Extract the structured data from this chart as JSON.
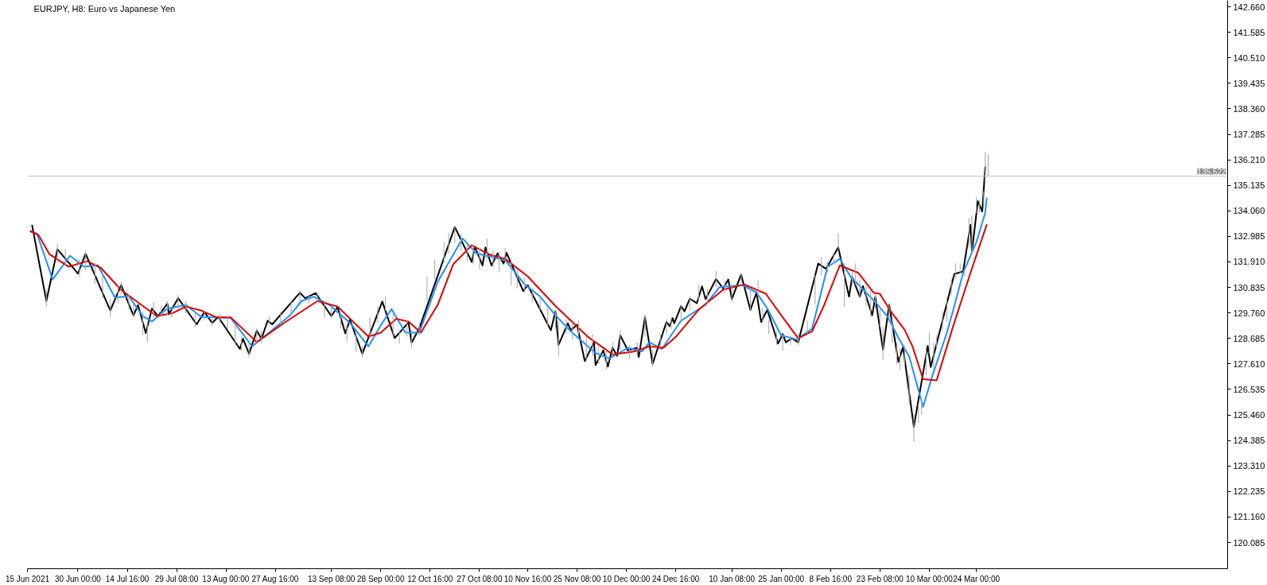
{
  "chart_data": {
    "type": "line",
    "title": "EURJPY, H8: Euro vs Japanese Yen",
    "grid": false,
    "xlim": [
      "2021-06-15",
      "2022-06-06T16:00"
    ],
    "xticks": [
      {
        "value": "2021-06-15",
        "label": "15 Jun 2021"
      },
      {
        "value": "2021-06-30T00:00",
        "label": "30 Jun 00:00"
      },
      {
        "value": "2021-07-14T16:00",
        "label": "14 Jul 16:00"
      },
      {
        "value": "2021-07-29T08:00",
        "label": "29 Jul 08:00"
      },
      {
        "value": "2021-08-13T00:00",
        "label": "13 Aug 00:00"
      },
      {
        "value": "2021-08-27T16:00",
        "label": "27 Aug 16:00"
      },
      {
        "value": "2021-09-13T08:00",
        "label": "13 Sep 08:00"
      },
      {
        "value": "2021-09-28T00:00",
        "label": "28 Sep 00:00"
      },
      {
        "value": "2021-10-12T16:00",
        "label": "12 Oct 16:00"
      },
      {
        "value": "2021-10-27T08:00",
        "label": "27 Oct 08:00"
      },
      {
        "value": "2021-11-10T16:00",
        "label": "10 Nov 16:00"
      },
      {
        "value": "2021-11-25T08:00",
        "label": "25 Nov 08:00"
      },
      {
        "value": "2021-12-10T00:00",
        "label": "10 Dec 00:00"
      },
      {
        "value": "2021-12-24T16:00",
        "label": "24 Dec 16:00"
      },
      {
        "value": "2022-01-10T08:00",
        "label": "10 Jan 08:00"
      },
      {
        "value": "2022-01-25T00:00",
        "label": "25 Jan 00:00"
      },
      {
        "value": "2022-02-08T16:00",
        "label": "8 Feb 16:00"
      },
      {
        "value": "2022-02-23T08:00",
        "label": "23 Feb 08:00"
      },
      {
        "value": "2022-03-10T00:00",
        "label": "10 Mar 00:00"
      },
      {
        "value": "2022-03-24T00:00",
        "label": "24 Mar 00:00"
      }
    ],
    "ylim": [
      118.98,
      142.93
    ],
    "yticks": [
      {
        "value": 120.085,
        "label": "120.085"
      },
      {
        "value": 121.16,
        "label": "121.160"
      },
      {
        "value": 122.235,
        "label": "122.235"
      },
      {
        "value": 123.31,
        "label": "123.310"
      },
      {
        "value": 124.385,
        "label": "124.385"
      },
      {
        "value": 125.46,
        "label": "125.460"
      },
      {
        "value": 126.535,
        "label": "126.535"
      },
      {
        "value": 127.61,
        "label": "127.610"
      },
      {
        "value": 128.685,
        "label": "128.685"
      },
      {
        "value": 129.76,
        "label": "129.760"
      },
      {
        "value": 130.835,
        "label": "130.835"
      },
      {
        "value": 131.91,
        "label": "131.910"
      },
      {
        "value": 132.985,
        "label": "132.985"
      },
      {
        "value": 134.06,
        "label": "134.060"
      },
      {
        "value": 135.135,
        "label": "135.135"
      },
      {
        "value": 136.21,
        "label": "136.210"
      },
      {
        "value": 137.285,
        "label": "137.285"
      },
      {
        "value": 138.36,
        "label": "138.360"
      },
      {
        "value": 139.435,
        "label": "139.435"
      },
      {
        "value": 140.51,
        "label": "140.510"
      },
      {
        "value": 141.585,
        "label": "141.585"
      },
      {
        "value": 142.66,
        "label": "142.660"
      }
    ],
    "ref_lines": [
      {
        "axis": "y",
        "value": 135.522,
        "label": "135.522",
        "color": "#c0c0c0"
      }
    ],
    "series": [
      {
        "color": "#000000",
        "x": [
          "2021-06-16T09:45",
          "2021-06-20T15:00",
          "2021-06-23T21:45",
          "2021-06-30T00:00",
          "2021-07-02T07:00",
          "2021-07-09T15:00",
          "2021-07-12T20:00",
          "2021-07-16T12:00",
          "2021-07-17T21:00",
          "2021-07-20T04:00",
          "2021-07-22T00:00",
          "2021-07-23T20:00",
          "2021-07-26T14:00",
          "2021-07-27T01:00",
          "2021-07-29T19:00",
          "2021-08-04T07:00",
          "2021-08-06T14:00",
          "2021-08-08T21:00",
          "2021-08-10T17:00",
          "2021-08-17T03:00",
          "2021-08-18T01:00",
          "2021-08-19T21:00",
          "2021-08-22T04:00",
          "2021-08-23T13:00",
          "2021-08-25T09:00",
          "2021-08-26T18:00",
          "2021-09-03T23:00",
          "2021-09-05T12:30",
          "2021-09-08T15:30",
          "2021-09-13T08:00",
          "2021-09-15T04:00",
          "2021-09-17T11:00",
          "2021-09-18T20:00",
          "2021-09-22T12:00",
          "2021-09-28T11:00",
          "2021-10-02T03:00",
          "2021-10-06T06:00",
          "2021-10-07T04:00",
          "2021-10-09T11:00",
          "2021-10-20T00:00",
          "2021-10-25T01:00",
          "2021-10-25T23:00",
          "2021-10-28T05:30",
          "2021-10-29T03:00",
          "2021-10-30T22:00",
          "2021-11-01T17:00",
          "2021-11-03T12:00",
          "2021-11-04T09:30",
          "2021-11-09T07:45",
          "2021-11-10T16:00",
          "2021-11-17T13:00",
          "2021-11-18T22:00",
          "2021-11-19T20:00",
          "2021-11-22T14:00",
          "2021-11-23T12:00",
          "2021-11-25T08:00",
          "2021-11-27T15:00",
          "2021-11-30T09:00",
          "2021-11-30T20:00",
          "2021-12-03T03:00",
          "2021-12-04T12:00",
          "2021-12-05T21:00",
          "2021-12-07T06:00",
          "2021-12-08T04:00",
          "2021-12-10T11:00",
          "2021-12-13T05:00",
          "2021-12-13T16:00",
          "2021-12-15T12:00",
          "2021-12-17T19:00",
          "2021-12-21T22:00",
          "2021-12-22T20:00",
          "2021-12-23T18:00",
          "2021-12-24T05:00",
          "2021-12-26T05:30",
          "2021-12-27T06:30",
          "2021-12-28T20:00",
          "2021-12-30T22:00",
          "2022-01-01T11:30",
          "2022-01-02T12:30",
          "2022-01-05T15:30",
          "2022-01-07T17:30",
          "2022-01-09T07:00",
          "2022-01-10T08:00",
          "2022-01-13T02:00",
          "2022-01-15T20:00",
          "2022-01-17T16:00",
          "2022-01-19T01:00",
          "2022-01-20T21:00",
          "2022-01-24T02:00",
          "2022-01-25T11:00",
          "2022-01-26T09:00",
          "2022-01-28T05:00",
          "2022-01-30T01:00",
          "2022-02-05T00:00",
          "2022-02-07T07:00",
          "2022-02-10T23:00",
          "2022-02-14T04:00",
          "2022-02-15T02:00",
          "2022-02-17T09:00",
          "2022-02-18T07:00",
          "2022-02-21T01:00",
          "2022-02-21T23:00",
          "2022-02-24T06:00",
          "2022-02-26T02:00",
          "2022-02-28T20:00",
          "2022-03-02T05:00",
          "2022-03-05T10:00",
          "2022-03-09T13:00",
          "2022-03-10T10:30",
          "2022-03-17T10:30",
          "2022-03-20T01:30",
          "2022-03-22T06:00",
          "2022-03-22T16:30",
          "2022-03-24T10:30",
          "2022-03-25T18:00",
          "2022-03-26T15:00"
        ],
        "values": [
          133.44,
          130.26,
          132.44,
          131.42,
          132.25,
          129.86,
          130.93,
          129.65,
          130.09,
          128.91,
          129.94,
          129.63,
          130.15,
          129.71,
          130.38,
          129.28,
          129.8,
          129.34,
          129.59,
          128.24,
          128.67,
          128.04,
          129.01,
          128.67,
          129.43,
          129.28,
          130.61,
          130.38,
          130.59,
          129.63,
          130.01,
          128.9,
          129.48,
          128.04,
          130.24,
          128.7,
          129.36,
          128.51,
          129.11,
          133.38,
          131.91,
          132.55,
          131.76,
          132.52,
          131.76,
          132.27,
          131.84,
          132.29,
          130.68,
          130.93,
          129.03,
          129.83,
          128.41,
          129.32,
          129.03,
          129.26,
          127.73,
          128.52,
          127.56,
          128.18,
          127.5,
          128.29,
          127.95,
          128.81,
          128.18,
          128.29,
          127.9,
          129.57,
          127.62,
          129.38,
          129.2,
          129.54,
          129.32,
          130.05,
          129.83,
          130.36,
          130.17,
          130.88,
          130.34,
          131.19,
          130.79,
          131.17,
          130.34,
          131.38,
          129.89,
          130.62,
          129.38,
          129.89,
          128.47,
          128.87,
          128.52,
          128.69,
          128.52,
          131.84,
          131.62,
          132.52,
          130.44,
          131.28,
          130.44,
          130.89,
          129.66,
          130.44,
          128.21,
          130.11,
          127.7,
          128.32,
          124.96,
          128.37,
          127.48,
          131.4,
          131.51,
          133.47,
          132.35,
          134.47,
          134.03,
          135.9
        ]
      },
      {
        "color": "#1e90ff",
        "x": [
          "2021-06-15T22:30",
          "2021-06-17T19:30",
          "2021-06-22T12:00",
          "2021-06-27T15:45",
          "2021-07-01T20:00",
          "2021-07-05T23:00",
          "2021-07-11T00:00",
          "2021-07-15T03:00",
          "2021-07-19T06:00",
          "2021-07-22T00:00",
          "2021-07-26T14:00",
          "2021-08-01T02:00",
          "2021-08-05T16:00",
          "2021-08-14T09:00",
          "2021-08-20T19:00",
          "2021-08-26T07:00",
          "2021-08-31T20:00",
          "2021-09-04T11:30",
          "2021-09-08T03:00",
          "2021-09-12T19:30",
          "2021-09-18T20:00",
          "2021-09-24T08:00",
          "2021-09-28T11:00",
          "2021-10-01T05:00",
          "2021-10-05T08:00",
          "2021-10-09T11:00",
          "2021-10-14T23:00",
          "2021-10-22T07:00",
          "2021-10-26T10:00",
          "2021-10-29T13:45",
          "2021-11-03T22:45",
          "2021-11-09T18:30",
          "2021-11-14T08:00",
          "2021-11-18T22:00",
          "2021-11-23T12:00",
          "2021-11-30T20:00",
          "2021-12-04T23:00",
          "2021-12-10T11:00",
          "2021-12-14T14:00",
          "2021-12-16T21:00",
          "2021-12-20T13:00",
          "2021-12-26T05:30",
          "2022-01-02T12:30",
          "2022-01-06T16:30",
          "2022-01-13T13:00",
          "2022-01-17T16:00",
          "2022-01-20T21:00",
          "2022-01-25T00:00",
          "2022-01-29T14:00",
          "2022-02-03T04:00",
          "2022-02-07T18:00",
          "2022-02-11T10:00",
          "2022-02-14T15:00",
          "2022-02-17T09:00",
          "2022-02-21T23:00",
          "2022-02-25T15:00",
          "2022-02-28T20:00",
          "2022-03-04T01:00",
          "2022-03-08T04:00",
          "2022-03-10T21:00",
          "2022-03-15T06:00",
          "2022-03-17T10:30",
          "2022-03-20T01:30",
          "2022-03-24T00:00",
          "2022-03-26T15:00",
          "2022-03-27T01:30"
        ],
        "values": [
          133.18,
          133.1,
          131.17,
          132.17,
          131.71,
          131.77,
          130.4,
          130.47,
          129.63,
          129.4,
          129.94,
          130.09,
          129.59,
          129.55,
          128.35,
          128.99,
          129.63,
          130.26,
          130.44,
          130.09,
          129.34,
          128.35,
          129.34,
          129.92,
          128.93,
          128.93,
          131.08,
          132.9,
          132.27,
          132.16,
          131.99,
          130.96,
          130.45,
          129.66,
          128.98,
          128.07,
          127.84,
          128.29,
          128.13,
          128.52,
          128.24,
          129.43,
          130.11,
          130.85,
          130.93,
          130.62,
          129.94,
          128.81,
          128.64,
          129.09,
          131.7,
          132.04,
          131.28,
          130.89,
          130.22,
          129.6,
          128.71,
          127.92,
          125.8,
          127.09,
          128.93,
          130.05,
          131.45,
          132.74,
          133.97,
          134.59
        ]
      },
      {
        "color": "#e00000",
        "x": [
          "2021-06-15T22:30",
          "2021-06-18T06:45",
          "2021-06-21T13:30",
          "2021-06-27T04:30",
          "2021-07-02T18:00",
          "2021-07-06T21:00",
          "2021-07-12T20:00",
          "2021-07-18T08:00",
          "2021-07-23T09:00",
          "2021-07-27T23:00",
          "2021-08-01T02:00",
          "2021-08-05T16:00",
          "2021-08-10T06:00",
          "2021-08-14T09:00",
          "2021-08-22T04:00",
          "2021-08-30T06:30",
          "2021-09-09T04:00",
          "2021-09-15T04:00",
          "2021-09-24T08:00",
          "2021-09-28T00:00",
          "2021-10-02T14:00",
          "2021-10-06T06:00",
          "2021-10-09T22:00",
          "2021-10-14T23:00",
          "2021-10-19T13:00",
          "2021-10-25T01:00",
          "2021-10-30T11:15",
          "2021-11-03T22:45",
          "2021-11-10T16:00",
          "2021-11-18T22:00",
          "2021-11-28T13:00",
          "2021-12-05T21:00",
          "2021-12-12T07:00",
          "2021-12-16T21:00",
          "2021-12-21T00:00",
          "2021-12-24T16:00",
          "2021-12-31T10:30",
          "2022-01-07T17:30",
          "2022-01-14T00:00",
          "2022-01-20T10:00",
          "2022-01-25T00:00",
          "2022-01-30T01:00",
          "2022-02-03T04:00",
          "2022-02-06T20:00",
          "2022-02-11T10:00",
          "2022-02-16T22:00",
          "2022-02-21T12:00",
          "2022-02-23T08:00",
          "2022-02-26T13:00",
          "2022-03-02T16:00",
          "2022-03-04T23:00",
          "2022-03-08T04:00",
          "2022-03-12T04:30",
          "2022-03-17T00:00",
          "2022-03-22T06:00",
          "2022-03-27T01:30"
        ],
        "values": [
          133.21,
          133.04,
          132.23,
          131.71,
          131.94,
          131.65,
          130.73,
          130.15,
          129.63,
          129.74,
          130.03,
          129.86,
          129.57,
          129.57,
          128.53,
          129.34,
          130.26,
          130.03,
          128.76,
          128.93,
          129.51,
          129.4,
          128.93,
          130.11,
          131.81,
          132.61,
          132.21,
          132.04,
          131.3,
          130.05,
          128.75,
          128.01,
          128.13,
          128.35,
          128.29,
          128.75,
          129.89,
          130.74,
          130.96,
          130.57,
          129.66,
          128.69,
          128.98,
          130.11,
          131.76,
          131.45,
          130.61,
          130.56,
          129.83,
          129.05,
          128.37,
          126.97,
          126.92,
          129.16,
          131.45,
          133.47
        ]
      },
      {
        "type": "bar",
        "color": "#a9a9a9",
        "x": [
          "2021-06-20T15:00",
          "2021-06-23T21:45",
          "2021-06-26T06:00",
          "2021-06-30T11:00",
          "2021-07-02T07:00",
          "2021-07-05T01:00",
          "2021-07-07T08:00",
          "2021-07-09T15:00",
          "2021-07-11T22:00",
          "2021-07-12T20:00",
          "2021-07-15T03:00",
          "2021-07-16T12:00",
          "2021-07-19T06:00",
          "2021-07-20T15:00",
          "2021-07-22T11:00",
          "2021-07-24T18:00",
          "2021-07-26T14:00",
          "2021-07-27T23:00",
          "2021-07-29T19:00",
          "2021-08-01T02:00",
          "2021-08-03T20:00",
          "2021-08-06T14:00",
          "2021-08-08T21:00",
          "2021-08-11T04:00",
          "2021-08-13T11:00",
          "2021-08-15T18:00",
          "2021-08-17T14:00",
          "2021-08-19T21:00",
          "2021-08-22T04:00",
          "2021-08-23T13:00",
          "2021-08-25T20:00",
          "2021-08-29T05:30",
          "2021-09-01T08:30",
          "2021-09-03T23:00",
          "2021-09-06T13:30",
          "2021-09-09T04:00",
          "2021-09-11T06:00",
          "2021-09-13T08:00",
          "2021-09-16T02:00",
          "2021-09-17T22:00",
          "2021-09-20T16:00",
          "2021-09-22T12:00",
          "2021-09-24T19:00",
          "2021-09-27T02:00",
          "2021-09-29T09:00",
          "2021-10-01T16:00",
          "2021-10-03T12:00",
          "2021-10-05T19:00",
          "2021-10-07T04:00",
          "2021-10-09T11:00",
          "2021-10-11T18:00",
          "2021-10-14T01:00",
          "2021-10-16T19:00",
          "2021-10-18T04:00",
          "2021-10-20T00:00",
          "2021-10-21T20:00",
          "2021-10-23T16:00",
          "2021-10-25T12:00",
          "2021-10-27T08:00",
          "2021-10-29T13:45",
          "2021-10-31T08:45",
          "2021-11-02T03:45",
          "2021-11-03T22:45",
          "2021-11-05T17:45",
          "2021-11-07T12:45",
          "2021-11-09T18:30",
          "2021-11-12T01:00",
          "2021-11-14T08:00",
          "2021-11-16T15:00",
          "2021-11-18T22:00",
          "2021-11-19T20:00",
          "2021-11-22T03:00",
          "2021-11-23T23:00",
          "2021-11-25T19:00",
          "2021-11-28T02:00",
          "2021-11-29T22:00",
          "2021-12-01T18:00",
          "2021-12-04T01:00",
          "2021-12-05T21:00",
          "2021-12-08T04:00",
          "2021-12-10T22:00",
          "2021-12-13T05:00",
          "2021-12-15T12:00",
          "2021-12-17T19:00",
          "2021-12-20T02:00",
          "2021-12-21T22:00",
          "2021-12-23T07:00",
          "2021-12-26T05:30",
          "2021-12-28T20:00",
          "2021-12-31T10:30",
          "2022-01-03T01:00",
          "2022-01-05T15:30",
          "2022-01-08T06:00",
          "2022-01-10T08:00",
          "2022-01-13T02:00",
          "2022-01-15T20:00",
          "2022-01-18T03:00",
          "2022-01-19T12:00",
          "2022-01-21T08:00",
          "2022-01-23T15:00",
          "2022-01-25T11:00",
          "2022-01-27T18:00",
          "2022-01-30T01:00",
          "2022-02-01T19:00",
          "2022-02-04T02:00",
          "2022-02-05T22:00",
          "2022-02-07T18:00",
          "2022-02-09T14:00",
          "2022-02-10T23:00",
          "2022-02-12T19:00",
          "2022-02-15T02:00",
          "2022-02-16T00:00",
          "2022-02-17T09:00",
          "2022-02-19T05:00",
          "2022-02-20T14:00",
          "2022-02-21T23:00",
          "2022-02-23T08:00",
          "2022-02-24T06:00",
          "2022-02-26T02:00",
          "2022-02-27T00:00",
          "2022-02-28T09:00",
          "2022-03-01T07:00",
          "2022-03-02T16:00",
          "2022-03-04T01:00",
          "2022-03-05T10:00",
          "2022-03-06T19:00",
          "2022-03-07T17:00",
          "2022-03-09T02:00",
          "2022-03-10T00:00",
          "2022-03-11T07:30",
          "2022-03-12T04:30",
          "2022-03-13T22:30",
          "2022-03-15T06:00",
          "2022-03-16T13:30",
          "2022-03-17T21:00",
          "2022-03-19T04:30",
          "2022-03-20T12:00",
          "2022-03-21T19:30",
          "2022-03-22T16:30",
          "2022-03-24T00:00",
          "2022-03-24T21:00",
          "2022-03-26T04:30",
          "2022-03-26T15:00",
          "2022-03-27T12:00"
        ],
        "base": [
          130.01,
          131.88,
          131.71,
          131.25,
          131.59,
          130.96,
          130.38,
          129.57,
          130.15,
          130.51,
          129.92,
          129.57,
          128.82,
          128.53,
          129.57,
          129.57,
          129.68,
          129.57,
          129.92,
          129.74,
          129.16,
          129.45,
          129.22,
          129.34,
          129.11,
          128.41,
          128.18,
          127.89,
          128.47,
          128.47,
          129.22,
          129.28,
          129.63,
          130.26,
          130.15,
          130.21,
          129.57,
          129.51,
          129.11,
          128.53,
          128.12,
          127.89,
          128.76,
          129.34,
          129.86,
          128.76,
          128.47,
          128.76,
          128.3,
          128.82,
          130.26,
          131.19,
          131.88,
          132.27,
          132.72,
          132.38,
          131.93,
          131.82,
          131.59,
          132.04,
          131.7,
          131.48,
          131.93,
          130.91,
          130.79,
          130.62,
          130.23,
          129.89,
          129.2,
          129.09,
          127.95,
          128.86,
          128.64,
          128.86,
          127.67,
          127.95,
          127.61,
          127.39,
          127.95,
          128.18,
          127.84,
          127.95,
          128.75,
          127.5,
          128.41,
          128.86,
          129.09,
          129.43,
          129.89,
          130.23,
          130.11,
          130.85,
          130.57,
          130.23,
          130.91,
          129.89,
          130.45,
          129.32,
          128.86,
          128.41,
          128.18,
          128.41,
          128.41,
          128.86,
          130.11,
          131.36,
          131.48,
          131.82,
          132.27,
          130.0,
          130.95,
          130.95,
          130.39,
          130.05,
          129.61,
          129.94,
          129.16,
          127.81,
          129.49,
          128.49,
          127.59,
          127.37,
          127.48,
          125.91,
          124.34,
          125.13,
          125.46,
          127.14,
          128.04,
          127.37,
          128.26,
          129.05,
          129.38,
          130.5,
          131.17,
          131.4,
          131.29,
          132.52,
          132.29,
          133.97,
          133.97,
          134.31,
          135.2,
          135.52
        ],
        "values": [
          0.72,
          0.78,
          0.75,
          0.75,
          0.78,
          0.92,
          1.04,
          0.81,
          0.75,
          0.56,
          0.59,
          0.58,
          0.98,
          0.81,
          0.64,
          0.52,
          0.58,
          0.4,
          0.59,
          0.52,
          0.64,
          0.41,
          0.41,
          0.4,
          0.52,
          0.93,
          0.58,
          0.64,
          0.64,
          0.52,
          0.41,
          0.52,
          0.63,
          0.47,
          0.36,
          0.4,
          0.64,
          0.52,
          0.69,
          0.69,
          0.76,
          0.47,
          0.81,
          0.69,
          0.58,
          1.04,
          0.58,
          0.69,
          0.75,
          0.52,
          1.05,
          0.81,
          0.87,
          0.85,
          0.69,
          0.69,
          0.79,
          0.79,
          0.91,
          0.85,
          0.68,
          0.85,
          0.57,
          1.02,
          0.8,
          0.63,
          0.56,
          0.56,
          0.8,
          0.8,
          1.48,
          0.63,
          0.73,
          0.57,
          1.08,
          0.91,
          0.8,
          0.79,
          0.57,
          0.85,
          0.57,
          0.57,
          0.95,
          0.68,
          0.45,
          0.63,
          0.51,
          0.68,
          0.56,
          0.73,
          0.68,
          0.68,
          0.56,
          0.68,
          0.51,
          0.9,
          0.68,
          0.68,
          0.63,
          0.57,
          0.68,
          0.4,
          0.45,
          0.57,
          1.25,
          0.74,
          0.45,
          0.45,
          0.85,
          1.59,
          0.56,
          0.89,
          0.78,
          0.9,
          1.11,
          0.62,
          0.89,
          1.35,
          0.68,
          1.12,
          0.9,
          0.89,
          0.89,
          1.23,
          1.12,
          0.78,
          0.67,
          1.16,
          0.89,
          1.12,
          0.56,
          0.78,
          0.9,
          0.67,
          0.67,
          0.44,
          0.33,
          1.23,
          1.57,
          0.67,
          0.56,
          0.56,
          1.35,
          0.94
        ]
      }
    ]
  }
}
